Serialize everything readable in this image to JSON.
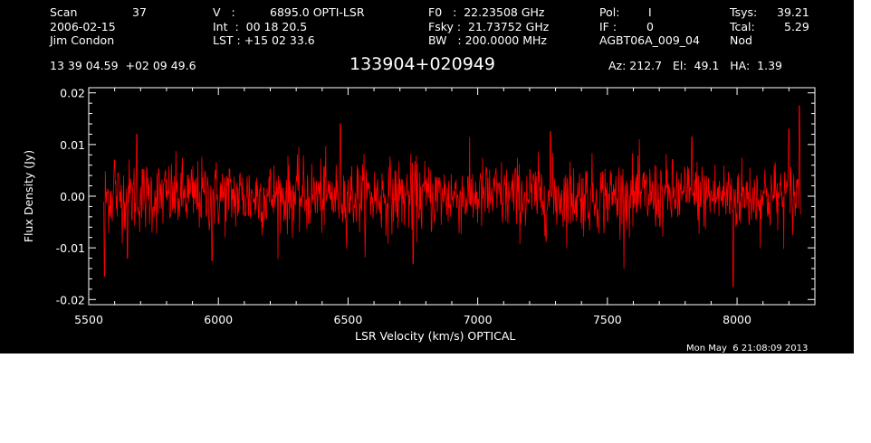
{
  "header": {
    "col1": [
      "Scan",
      "2006-02-15",
      "Jim Condon"
    ],
    "scan_number": "37",
    "col2": [
      "V   :",
      "Int  :  00 18 20.5",
      "LST : +15 02 33.6"
    ],
    "velocity_value": "6895.0 OPTI-LSR",
    "col3": [
      "F0   :  22.23508 GHz",
      "Fsky :  21.73752 GHz",
      "BW   : 200.0000 MHz"
    ],
    "col4": [
      "Pol:",
      "IF :",
      "AGBT06A_009_04"
    ],
    "pol_value": "I",
    "if_value": "0",
    "col5": [
      "Tsys:",
      "Tcal:",
      "Nod"
    ],
    "tsys_value": "39.21",
    "tcal_value": "5.29",
    "coords": "13 39 04.59  +02 09 49.6",
    "source": "133904+020949",
    "azelha": "Az: 212.7   El:  49.1   HA:  1.39",
    "timestamp": "Mon May  6 21:08:09 2013"
  },
  "colors": {
    "background": "#000000",
    "axes": "#ffffff",
    "trace": "#ff0000"
  },
  "chart_data": {
    "type": "line",
    "xlabel": "LSR Velocity (km/s) OPTICAL",
    "ylabel": "Flux Density (Jy)",
    "xlim": [
      5500,
      8300
    ],
    "ylim": [
      -0.021,
      0.021
    ],
    "x_ticks": [
      5500,
      6000,
      6500,
      7000,
      7500,
      8000
    ],
    "x_tick_labels": [
      "5500",
      "6000",
      "6500",
      "7000",
      "7500",
      "8000"
    ],
    "y_ticks": [
      -0.02,
      -0.01,
      0.0,
      0.01,
      0.02
    ],
    "y_tick_labels": [
      "-0.02",
      "-0.01",
      "0.00",
      "0.01",
      "0.02"
    ],
    "grid": false,
    "series": [
      {
        "x_range": [
          5558,
          8245
        ],
        "mean": 0.0,
        "rms": 0.0035,
        "features": [
          {
            "x": 5560,
            "y": -0.0155
          },
          {
            "x": 5600,
            "y": 0.007
          },
          {
            "x": 5650,
            "y": -0.012
          },
          {
            "x": 5685,
            "y": 0.012
          },
          {
            "x": 5975,
            "y": -0.0125
          },
          {
            "x": 6470,
            "y": 0.014
          },
          {
            "x": 6750,
            "y": -0.013
          },
          {
            "x": 7280,
            "y": 0.0125
          },
          {
            "x": 7825,
            "y": 0.0115
          },
          {
            "x": 7985,
            "y": -0.0175
          },
          {
            "x": 8200,
            "y": 0.013
          },
          {
            "x": 8240,
            "y": 0.0175
          }
        ]
      }
    ]
  }
}
